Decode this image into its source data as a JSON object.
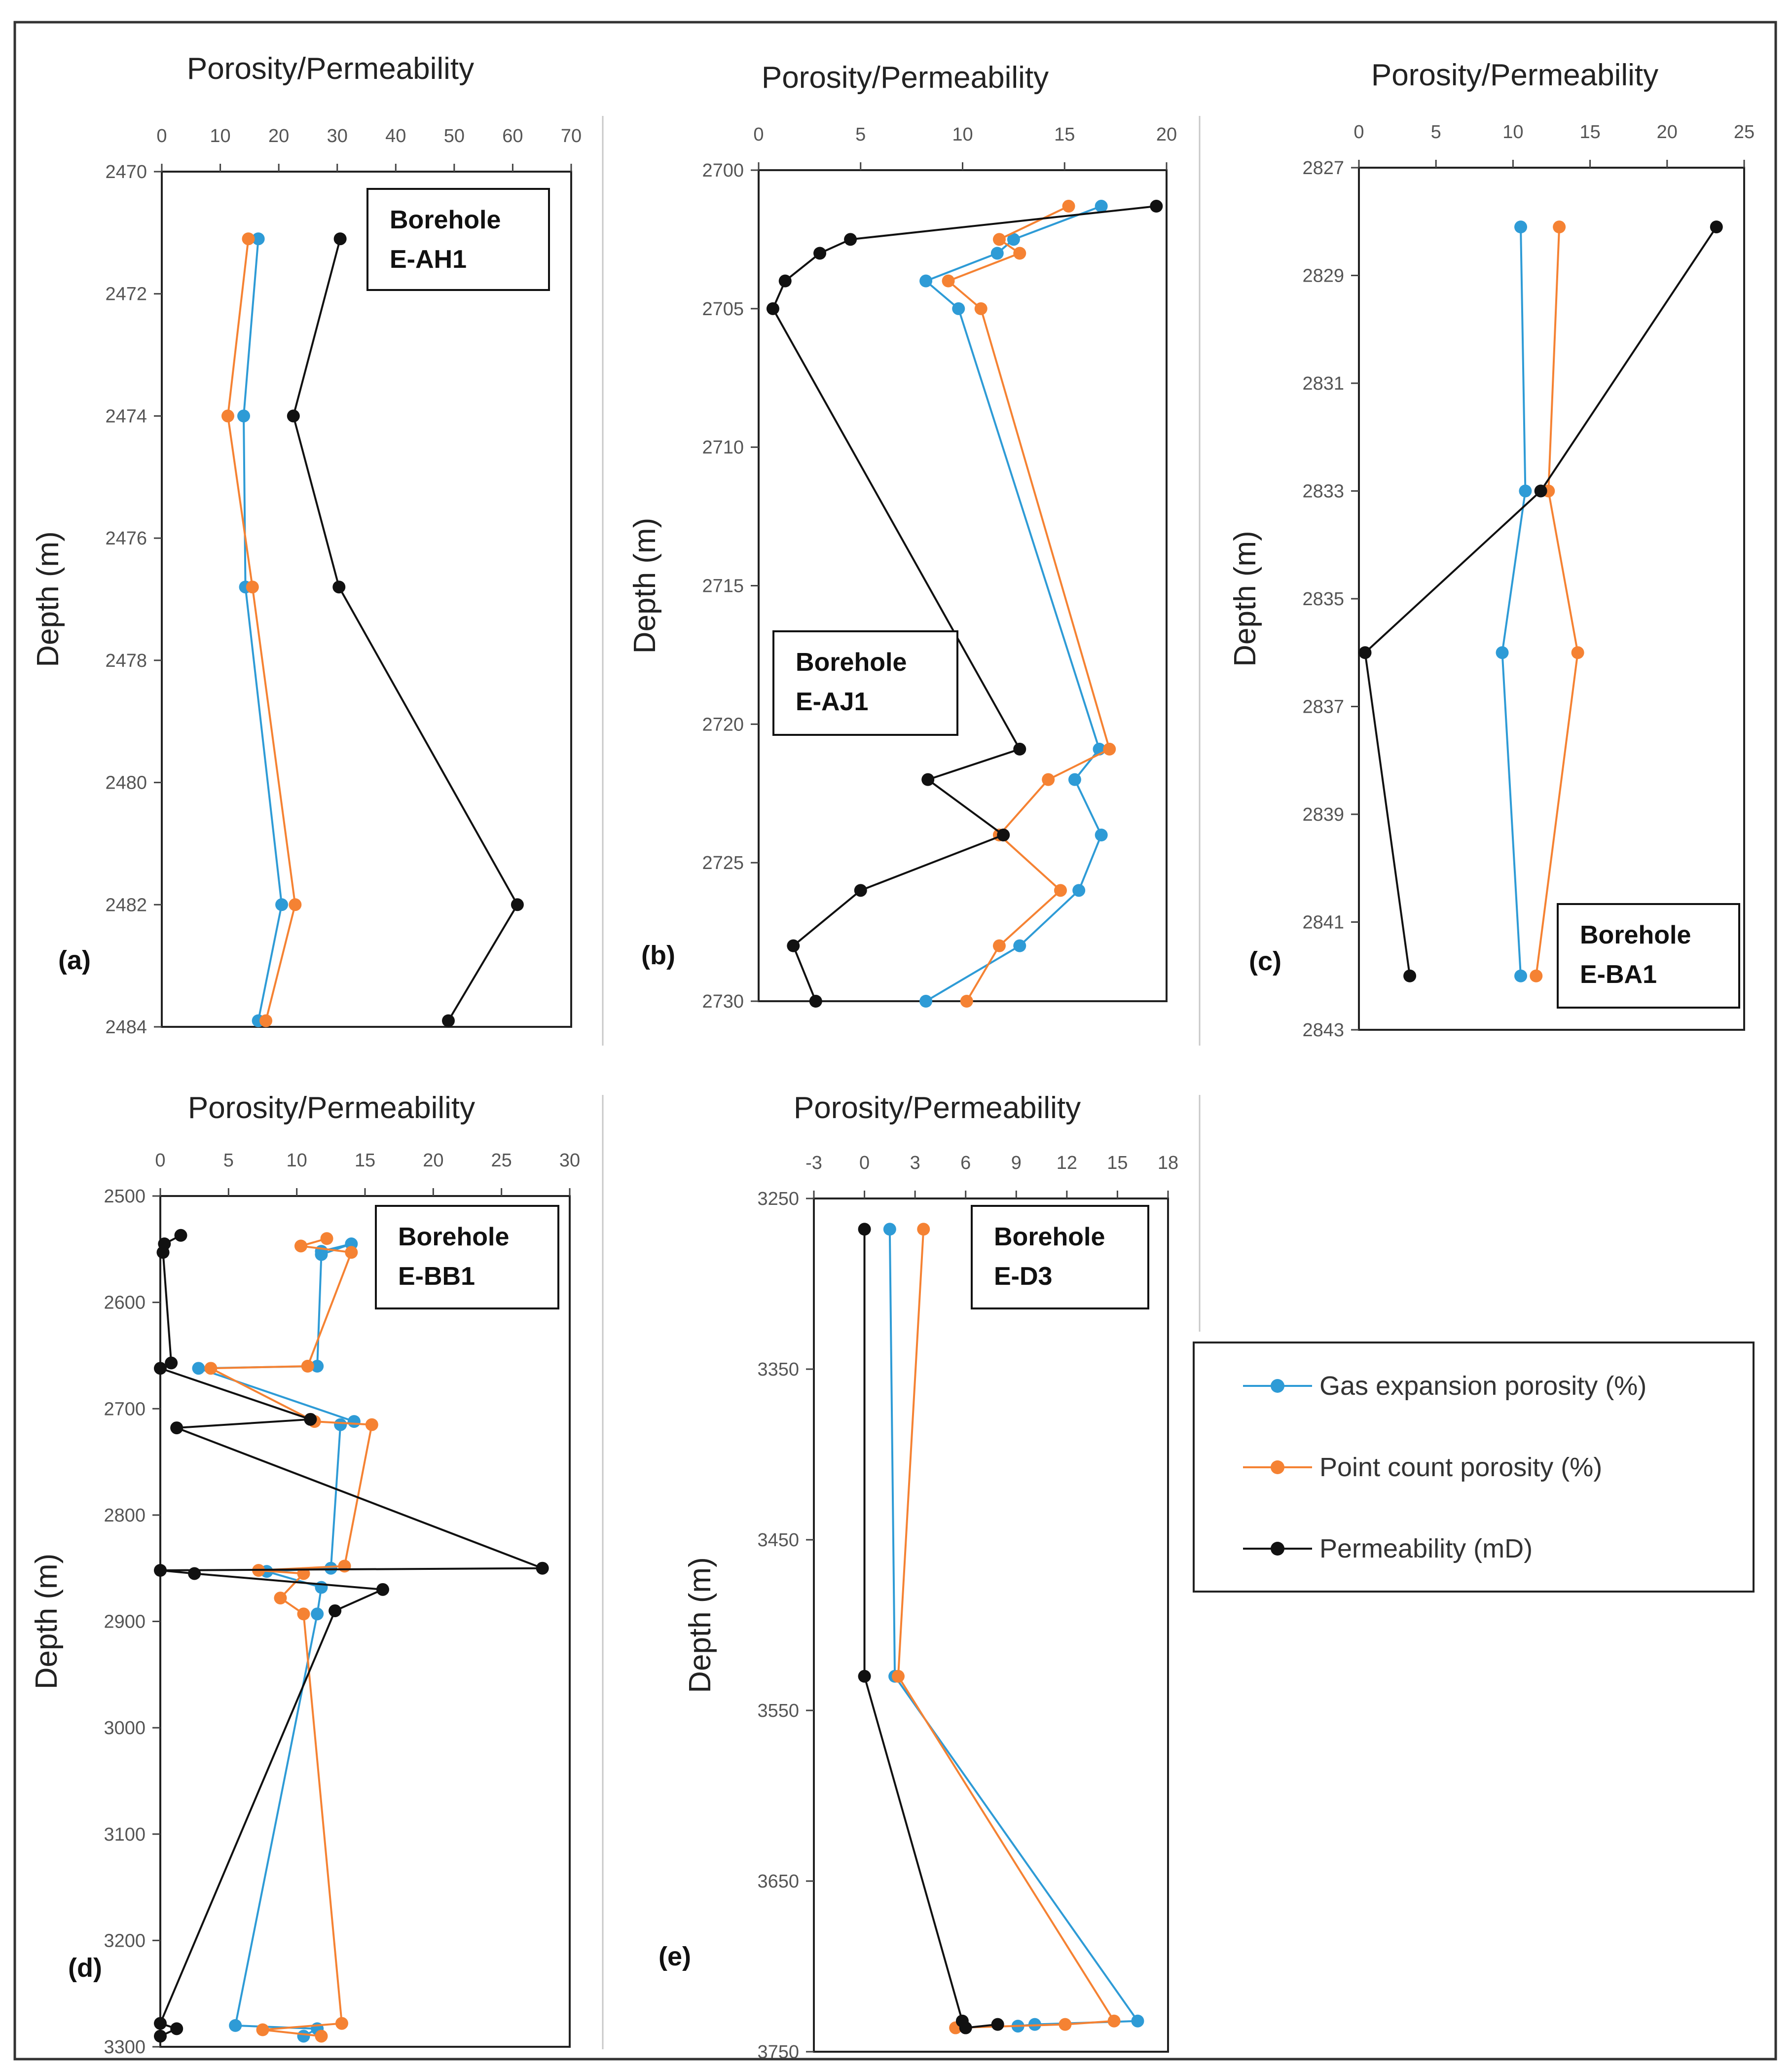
{
  "legend": {
    "entries": [
      {
        "label": "Gas expansion porosity (%)",
        "color": "#2E9BD6"
      },
      {
        "label": "Point count porosity (%)",
        "color": "#F58233"
      },
      {
        "label": "Permeability (mD)",
        "color": "#111111"
      }
    ]
  },
  "chart_data": [
    {
      "type": "line",
      "panel_label": "(a)",
      "title": "Porosity/Permeability",
      "ylabel": "Depth (m)",
      "borehole": [
        "Borehole",
        "E-AH1"
      ],
      "xlim": [
        0,
        70
      ],
      "xticks": [
        0,
        10,
        20,
        30,
        40,
        50,
        60,
        70
      ],
      "ylim": [
        2470,
        2484
      ],
      "yticks": [
        2470,
        2472,
        2474,
        2476,
        2478,
        2480,
        2482,
        2484
      ],
      "series": [
        {
          "name": "Gas expansion porosity (%)",
          "color": "#2E9BD6",
          "points": [
            [
              16.5,
              2471.1
            ],
            [
              14.0,
              2474.0
            ],
            [
              14.3,
              2476.8
            ],
            [
              20.5,
              2482.0
            ],
            [
              16.5,
              2483.9
            ]
          ]
        },
        {
          "name": "Point count porosity (%)",
          "color": "#F58233",
          "points": [
            [
              14.8,
              2471.1
            ],
            [
              11.3,
              2474.0
            ],
            [
              15.5,
              2476.8
            ],
            [
              22.8,
              2482.0
            ],
            [
              17.8,
              2483.9
            ]
          ]
        },
        {
          "name": "Permeability (mD)",
          "color": "#111111",
          "points": [
            [
              30.5,
              2471.1
            ],
            [
              22.5,
              2474.0
            ],
            [
              30.3,
              2476.8
            ],
            [
              60.8,
              2482.0
            ],
            [
              49.0,
              2483.9
            ]
          ]
        }
      ]
    },
    {
      "type": "line",
      "panel_label": "(b)",
      "title": "Porosity/Permeability",
      "ylabel": "Depth (m)",
      "borehole": [
        "Borehole",
        "E-AJ1"
      ],
      "xlim": [
        0,
        20
      ],
      "xticks": [
        0,
        5,
        10,
        15,
        20
      ],
      "ylim": [
        2700,
        2730
      ],
      "yticks": [
        2700,
        2705,
        2710,
        2715,
        2720,
        2725,
        2730
      ],
      "series": [
        {
          "name": "Gas expansion porosity (%)",
          "color": "#2E9BD6",
          "points": [
            [
              16.8,
              2701.3
            ],
            [
              12.5,
              2702.5
            ],
            [
              11.7,
              2703.0
            ],
            [
              8.2,
              2704.0
            ],
            [
              9.8,
              2705.0
            ],
            [
              16.7,
              2720.9
            ],
            [
              15.5,
              2722.0
            ],
            [
              16.8,
              2724.0
            ],
            [
              15.7,
              2726.0
            ],
            [
              12.8,
              2728.0
            ],
            [
              8.2,
              2730.0
            ]
          ]
        },
        {
          "name": "Point count porosity (%)",
          "color": "#F58233",
          "points": [
            [
              15.2,
              2701.3
            ],
            [
              11.8,
              2702.5
            ],
            [
              12.8,
              2703.0
            ],
            [
              9.3,
              2704.0
            ],
            [
              10.9,
              2705.0
            ],
            [
              17.2,
              2720.9
            ],
            [
              14.2,
              2722.0
            ],
            [
              11.8,
              2724.0
            ],
            [
              14.8,
              2726.0
            ],
            [
              11.8,
              2728.0
            ],
            [
              10.2,
              2730.0
            ]
          ]
        },
        {
          "name": "Permeability (mD)",
          "color": "#111111",
          "points": [
            [
              19.5,
              2701.3
            ],
            [
              4.5,
              2702.5
            ],
            [
              3.0,
              2703.0
            ],
            [
              1.3,
              2704.0
            ],
            [
              0.7,
              2705.0
            ],
            [
              12.8,
              2720.9
            ],
            [
              8.3,
              2722.0
            ],
            [
              12.0,
              2724.0
            ],
            [
              5.0,
              2726.0
            ],
            [
              1.7,
              2728.0
            ],
            [
              2.8,
              2730.0
            ]
          ]
        }
      ]
    },
    {
      "type": "line",
      "panel_label": "(c)",
      "title": "Porosity/Permeability",
      "ylabel": "Depth (m)",
      "borehole": [
        "Borehole",
        "E-BA1"
      ],
      "xlim": [
        0,
        25
      ],
      "xticks": [
        0,
        5,
        10,
        15,
        20,
        25
      ],
      "ylim": [
        2827,
        2843
      ],
      "yticks": [
        2827,
        2829,
        2831,
        2833,
        2835,
        2837,
        2839,
        2841,
        2843
      ],
      "series": [
        {
          "name": "Gas expansion porosity (%)",
          "color": "#2E9BD6",
          "points": [
            [
              10.5,
              2828.1
            ],
            [
              10.8,
              2833.0
            ],
            [
              9.3,
              2836.0
            ],
            [
              10.5,
              2842.0
            ]
          ]
        },
        {
          "name": "Point count porosity (%)",
          "color": "#F58233",
          "points": [
            [
              13.0,
              2828.1
            ],
            [
              12.3,
              2833.0
            ],
            [
              14.2,
              2836.0
            ],
            [
              11.5,
              2842.0
            ]
          ]
        },
        {
          "name": "Permeability (mD)",
          "color": "#111111",
          "points": [
            [
              23.2,
              2828.1
            ],
            [
              11.8,
              2833.0
            ],
            [
              0.4,
              2836.0
            ],
            [
              3.3,
              2842.0
            ]
          ]
        }
      ]
    },
    {
      "type": "line",
      "panel_label": "(d)",
      "title": "Porosity/Permeability",
      "ylabel": "Depth (m)",
      "borehole": [
        "Borehole",
        "E-BB1"
      ],
      "xlim": [
        0,
        30
      ],
      "xticks": [
        0,
        5,
        10,
        15,
        20,
        25,
        30
      ],
      "ylim": [
        2500,
        3300
      ],
      "yticks": [
        2500,
        2600,
        2700,
        2800,
        2900,
        3000,
        3100,
        3200,
        3300
      ],
      "series": [
        {
          "name": "Gas expansion porosity (%)",
          "color": "#2E9BD6",
          "points": [
            [
              11.8,
              2552
            ],
            [
              14.0,
              2545
            ],
            [
              11.8,
              2555
            ],
            [
              11.5,
              2660
            ],
            [
              2.8,
              2662
            ],
            [
              14.2,
              2712
            ],
            [
              13.2,
              2715
            ],
            [
              12.5,
              2850
            ],
            [
              7.8,
              2853
            ],
            [
              11.8,
              2868
            ],
            [
              11.5,
              2893
            ],
            [
              5.5,
              3280
            ],
            [
              11.5,
              3283
            ],
            [
              10.5,
              3290
            ]
          ]
        },
        {
          "name": "Point count porosity (%)",
          "color": "#F58233",
          "points": [
            [
              12.2,
              2540
            ],
            [
              10.3,
              2547
            ],
            [
              14.0,
              2553
            ],
            [
              10.8,
              2660
            ],
            [
              3.7,
              2662
            ],
            [
              11.3,
              2712
            ],
            [
              15.5,
              2715
            ],
            [
              13.5,
              2848
            ],
            [
              7.2,
              2852
            ],
            [
              10.5,
              2855
            ],
            [
              8.8,
              2878
            ],
            [
              10.5,
              2893
            ],
            [
              13.3,
              3278
            ],
            [
              7.5,
              3284
            ],
            [
              11.8,
              3290
            ]
          ]
        },
        {
          "name": "Permeability (mD)",
          "color": "#111111",
          "points": [
            [
              1.5,
              2537
            ],
            [
              0.3,
              2545
            ],
            [
              0.2,
              2553
            ],
            [
              0.8,
              2657
            ],
            [
              0.0,
              2662
            ],
            [
              11.0,
              2710
            ],
            [
              1.2,
              2718
            ],
            [
              28.0,
              2850
            ],
            [
              0.0,
              2852
            ],
            [
              2.5,
              2855
            ],
            [
              16.3,
              2870
            ],
            [
              12.8,
              2890
            ],
            [
              0.0,
              3278
            ],
            [
              1.2,
              3283
            ],
            [
              0.0,
              3290
            ]
          ]
        }
      ]
    },
    {
      "type": "line",
      "panel_label": "(e)",
      "title": "Porosity/Permeability",
      "ylabel": "Depth (m)",
      "borehole": [
        "Borehole",
        "E-D3"
      ],
      "xlim": [
        -3,
        18
      ],
      "xticks": [
        -3,
        0,
        3,
        6,
        9,
        12,
        15,
        18
      ],
      "ylim": [
        3250,
        3750
      ],
      "yticks": [
        3250,
        3350,
        3450,
        3550,
        3650,
        3750
      ],
      "series": [
        {
          "name": "Gas expansion porosity (%)",
          "color": "#2E9BD6",
          "points": [
            [
              1.5,
              3268
            ],
            [
              1.8,
              3530
            ],
            [
              16.2,
              3732
            ],
            [
              10.1,
              3734
            ],
            [
              9.1,
              3735
            ]
          ]
        },
        {
          "name": "Point count porosity (%)",
          "color": "#F58233",
          "points": [
            [
              3.5,
              3268
            ],
            [
              2.0,
              3530
            ],
            [
              14.8,
              3732
            ],
            [
              11.9,
              3734
            ],
            [
              5.4,
              3736
            ]
          ]
        },
        {
          "name": "Permeability (mD)",
          "color": "#111111",
          "points": [
            [
              0.0,
              3268
            ],
            [
              0.0,
              3530
            ],
            [
              5.8,
              3732
            ],
            [
              6.0,
              3736
            ],
            [
              7.9,
              3734
            ]
          ]
        }
      ]
    }
  ]
}
